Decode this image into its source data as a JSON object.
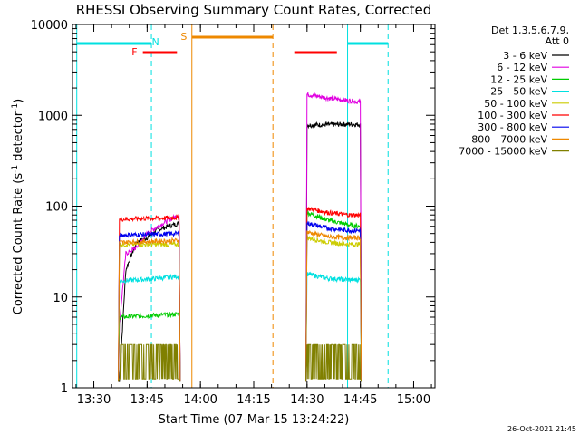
{
  "chart_data": {
    "type": "line",
    "title": "RHESSI Observing Summary Count Rates, Corrected",
    "xlabel": "Start Time (07-Mar-15 13:24:22)",
    "ylabel": "Corrected Count Rate (s⁻¹ detector⁻¹)",
    "ylabel_main": "Corrected Count Rate (s",
    "ylabel_sup1": "-1",
    "ylabel_mid": " detector",
    "ylabel_sup2": "-1",
    "ylabel_end": ")",
    "y_scale": "log",
    "ylim": [
      1,
      10000
    ],
    "xlim_minutes": [
      13.4,
      15.1
    ],
    "x_ticks": [
      {
        "label": "13:30",
        "t": 13.5
      },
      {
        "label": "13:45",
        "t": 13.75
      },
      {
        "label": "14:00",
        "t": 14.0
      },
      {
        "label": "14:15",
        "t": 14.25
      },
      {
        "label": "14:30",
        "t": 14.5
      },
      {
        "label": "14:45",
        "t": 14.75
      },
      {
        "label": "15:00",
        "t": 15.0
      }
    ],
    "y_ticks": [
      {
        "label": "1",
        "v": 1
      },
      {
        "label": "10",
        "v": 10
      },
      {
        "label": "100",
        "v": 100
      },
      {
        "label": "1000",
        "v": 1000
      },
      {
        "label": "10000",
        "v": 10000
      }
    ],
    "legend_header": [
      "Det 1,3,5,6,7,9,",
      "Att 0"
    ],
    "legend_position": "right",
    "series": [
      {
        "name": "3 - 6 keV",
        "color": "#000000",
        "seg1": [
          {
            "t": 13.62,
            "v": 1.2
          },
          {
            "t": 13.65,
            "v": 20
          },
          {
            "t": 13.7,
            "v": 40
          },
          {
            "t": 13.75,
            "v": 45
          },
          {
            "t": 13.8,
            "v": 55
          },
          {
            "t": 13.85,
            "v": 60
          },
          {
            "t": 13.9,
            "v": 65
          }
        ],
        "seg2": [
          {
            "t": 14.5,
            "v": 780
          },
          {
            "t": 14.6,
            "v": 790
          },
          {
            "t": 14.7,
            "v": 800
          },
          {
            "t": 14.75,
            "v": 790
          }
        ]
      },
      {
        "name": "6 - 12 keV",
        "color": "#e000e0",
        "seg1": [
          {
            "t": 13.62,
            "v": 5
          },
          {
            "t": 13.65,
            "v": 30
          },
          {
            "t": 13.7,
            "v": 35
          },
          {
            "t": 13.75,
            "v": 50
          },
          {
            "t": 13.8,
            "v": 60
          },
          {
            "t": 13.85,
            "v": 70
          },
          {
            "t": 13.9,
            "v": 80
          }
        ],
        "seg2": [
          {
            "t": 14.5,
            "v": 1700
          },
          {
            "t": 14.6,
            "v": 1550
          },
          {
            "t": 14.7,
            "v": 1450
          },
          {
            "t": 14.75,
            "v": 1400
          }
        ]
      },
      {
        "name": "12 - 25 keV",
        "color": "#00cc00",
        "seg1": [
          {
            "t": 13.62,
            "v": 6
          },
          {
            "t": 13.9,
            "v": 6.5
          }
        ],
        "seg2": [
          {
            "t": 14.5,
            "v": 85
          },
          {
            "t": 14.6,
            "v": 70
          },
          {
            "t": 14.7,
            "v": 62
          },
          {
            "t": 14.75,
            "v": 60
          }
        ]
      },
      {
        "name": "25 - 50 keV",
        "color": "#00e0e0",
        "seg1": [
          {
            "t": 13.62,
            "v": 15
          },
          {
            "t": 13.8,
            "v": 16
          },
          {
            "t": 13.9,
            "v": 17
          }
        ],
        "seg2": [
          {
            "t": 14.5,
            "v": 18
          },
          {
            "t": 14.6,
            "v": 16
          },
          {
            "t": 14.7,
            "v": 15.5
          },
          {
            "t": 14.75,
            "v": 15.5
          }
        ]
      },
      {
        "name": "50 - 100 keV",
        "color": "#cccc00",
        "seg1": [
          {
            "t": 13.62,
            "v": 38
          },
          {
            "t": 13.9,
            "v": 38
          }
        ],
        "seg2": [
          {
            "t": 14.5,
            "v": 45
          },
          {
            "t": 14.6,
            "v": 40
          },
          {
            "t": 14.7,
            "v": 38
          },
          {
            "t": 14.75,
            "v": 38
          }
        ]
      },
      {
        "name": "100 - 300 keV",
        "color": "#ff0000",
        "seg1": [
          {
            "t": 13.62,
            "v": 72
          },
          {
            "t": 13.9,
            "v": 75
          }
        ],
        "seg2": [
          {
            "t": 14.5,
            "v": 95
          },
          {
            "t": 14.6,
            "v": 85
          },
          {
            "t": 14.7,
            "v": 80
          },
          {
            "t": 14.75,
            "v": 80
          }
        ]
      },
      {
        "name": "300 - 800 keV",
        "color": "#0000ee",
        "seg1": [
          {
            "t": 13.62,
            "v": 48
          },
          {
            "t": 13.9,
            "v": 50
          }
        ],
        "seg2": [
          {
            "t": 14.5,
            "v": 65
          },
          {
            "t": 14.6,
            "v": 57
          },
          {
            "t": 14.7,
            "v": 54
          },
          {
            "t": 14.75,
            "v": 54
          }
        ]
      },
      {
        "name": "800 - 7000 keV",
        "color": "#ee8800",
        "seg1": [
          {
            "t": 13.62,
            "v": 40
          },
          {
            "t": 13.9,
            "v": 42
          }
        ],
        "seg2": [
          {
            "t": 14.5,
            "v": 52
          },
          {
            "t": 14.6,
            "v": 46
          },
          {
            "t": 14.7,
            "v": 45
          },
          {
            "t": 14.75,
            "v": 45
          }
        ]
      },
      {
        "name": "7000 - 15000 keV",
        "color": "#808000",
        "seg1": [
          {
            "t": 13.62,
            "v": 2.5
          },
          {
            "t": 13.9,
            "v": 2.5
          }
        ],
        "seg2": [
          {
            "t": 14.5,
            "v": 2.5
          },
          {
            "t": 14.75,
            "v": 2.5
          }
        ]
      }
    ],
    "flags": [
      {
        "label": "N",
        "kind": "night",
        "color": "#00e0e0",
        "label_t": 13.755
      },
      {
        "label": "F",
        "kind": "flare",
        "color": "#ff0000",
        "label_t": 13.72
      },
      {
        "label": "S",
        "kind": "saa",
        "color": "#ee8800",
        "label_t": 13.95
      }
    ],
    "timestamp": "26-Oct-2021 21:45"
  }
}
